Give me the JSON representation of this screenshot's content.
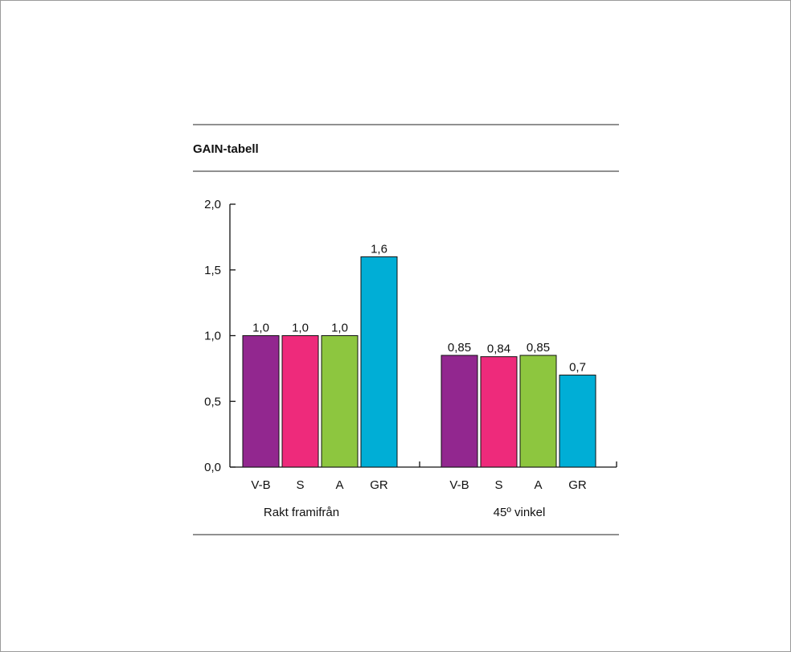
{
  "chart_data": {
    "type": "bar",
    "title": "GAIN-tabell",
    "ylim": [
      0,
      2.0
    ],
    "yticks": [
      {
        "value": 0.0,
        "label": "0,0"
      },
      {
        "value": 0.5,
        "label": "0,5"
      },
      {
        "value": 1.0,
        "label": "1,0"
      },
      {
        "value": 1.5,
        "label": "1,5"
      },
      {
        "value": 2.0,
        "label": "2,0"
      }
    ],
    "groups": [
      {
        "name": "Rakt framifrån",
        "categories": [
          "V-B",
          "S",
          "A",
          "GR"
        ],
        "values": [
          1.0,
          1.0,
          1.0,
          1.6
        ],
        "value_labels": [
          "1,0",
          "1,0",
          "1,0",
          "1,6"
        ]
      },
      {
        "name": "45º vinkel",
        "categories": [
          "V-B",
          "S",
          "A",
          "GR"
        ],
        "values": [
          0.85,
          0.84,
          0.85,
          0.7
        ],
        "value_labels": [
          "0,85",
          "0,84",
          "0,85",
          "0,7"
        ]
      }
    ],
    "colors": {
      "V-B": "#92278f",
      "S": "#ee2a7b",
      "A": "#8dc63f",
      "GR": "#00aed6"
    },
    "grid": false,
    "legend": "none"
  }
}
